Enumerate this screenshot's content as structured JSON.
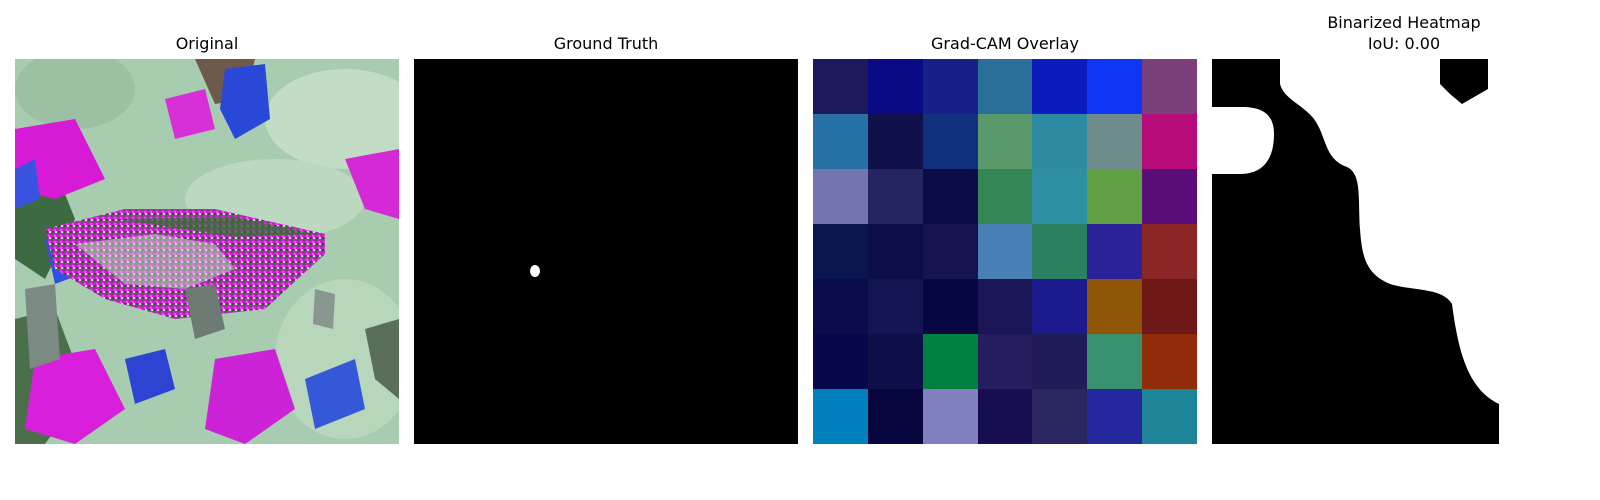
{
  "panels": [
    {
      "id": "original",
      "title": "Original"
    },
    {
      "id": "ground-truth",
      "title": "Ground Truth"
    },
    {
      "id": "gradcam",
      "title": "Grad-CAM Overlay",
      "grid_colors": [
        [
          "#1c1a5c",
          "#0b0a86",
          "#172085",
          "#2a6e9a",
          "#0b1bbd",
          "#0f35f5",
          "#7a3f78"
        ],
        [
          "#2672a6",
          "#10104a",
          "#11307e",
          "#5a9a6a",
          "#2e8aa0",
          "#6e8c8c",
          "#b80c7a"
        ],
        [
          "#7474b0",
          "#242460",
          "#0c0c46",
          "#348656",
          "#2e8ea2",
          "#62a046",
          "#5a0e7a"
        ],
        [
          "#0c164e",
          "#0c0e48",
          "#16144e",
          "#4880b6",
          "#2a8060",
          "#2b229a",
          "#8a2626"
        ],
        [
          "#0a0c4c",
          "#131452",
          "#060640",
          "#1a1656",
          "#1d1a8e",
          "#8e5606",
          "#6e1818"
        ],
        [
          "#08064c",
          "#0e0e48",
          "#008040",
          "#241e5e",
          "#201c58",
          "#389270",
          "#902c0a"
        ],
        [
          "#0080bc",
          "#08063e",
          "#8080c0",
          "#160e50",
          "#2a2660",
          "#24289c",
          "#1e8498"
        ]
      ]
    },
    {
      "id": "binarized",
      "title": "Binarized Heatmap",
      "subtitle": "IoU: 0.00"
    }
  ]
}
